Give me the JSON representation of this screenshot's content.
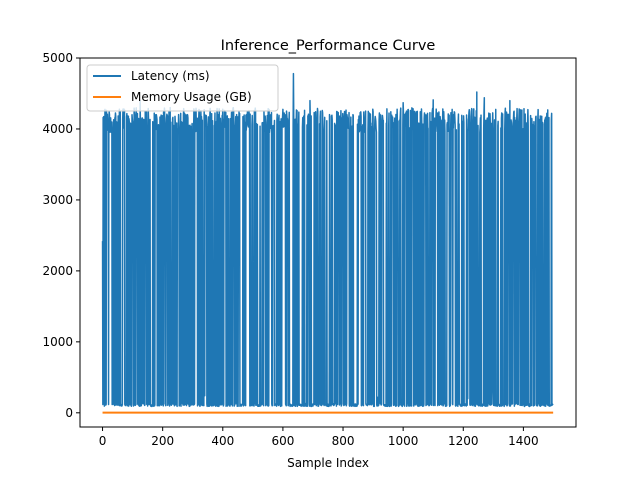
{
  "chart_data": {
    "type": "line",
    "title": "Inference_Performance Curve",
    "xlabel": "Sample Index",
    "ylabel": "",
    "xlim": [
      -75,
      1575
    ],
    "ylim": [
      -200,
      5000
    ],
    "xticks": [
      0,
      200,
      400,
      600,
      800,
      1000,
      1200,
      1400
    ],
    "yticks": [
      0,
      1000,
      2000,
      3000,
      4000,
      5000
    ],
    "grid": false,
    "legend_position": "top-left",
    "n_samples": 1500,
    "series": [
      {
        "name": "Latency (ms)",
        "color": "#1f77b4",
        "baseline_range": [
          90,
          130
        ],
        "spike_range": [
          4000,
          4300
        ],
        "fraction_spikes": 0.55,
        "peaks": [
          {
            "x": 635,
            "y": 4780
          },
          {
            "x": 1245,
            "y": 4520
          },
          {
            "x": 1355,
            "y": 4400
          },
          {
            "x": 1100,
            "y": 4410
          },
          {
            "x": 1270,
            "y": 4440
          },
          {
            "x": 1000,
            "y": 4370
          },
          {
            "x": 690,
            "y": 4400
          },
          {
            "x": 125,
            "y": 4400
          },
          {
            "x": 225,
            "y": 4300
          },
          {
            "x": 1500,
            "y": 4200
          }
        ],
        "deep_dips": [
          {
            "x": 0,
            "y": 2420
          },
          {
            "x": 5,
            "y": 2950
          },
          {
            "x": 10,
            "y": 3550
          },
          {
            "x": 220,
            "y": 2480
          },
          {
            "x": 340,
            "y": 240
          },
          {
            "x": 720,
            "y": 280
          },
          {
            "x": 915,
            "y": 220
          },
          {
            "x": 1080,
            "y": 180
          },
          {
            "x": 1215,
            "y": 200
          },
          {
            "x": 1300,
            "y": 300
          }
        ]
      },
      {
        "name": "Memory Usage (GB)",
        "color": "#ff7f0e",
        "values_constant": 2.0
      }
    ]
  }
}
